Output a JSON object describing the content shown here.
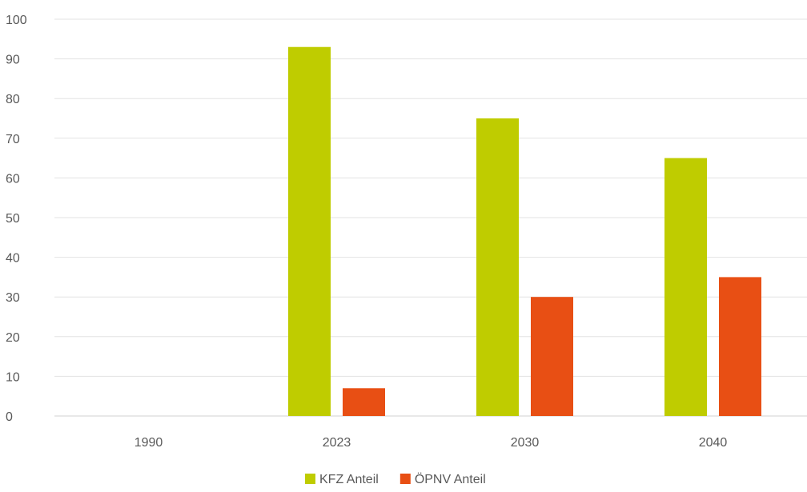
{
  "chart_data": {
    "type": "bar",
    "categories": [
      "1990",
      "2023",
      "2030",
      "2040"
    ],
    "series": [
      {
        "name": "KFZ Anteil",
        "color": "#bfcc00",
        "values": [
          0,
          93,
          75,
          65
        ]
      },
      {
        "name": "ÖPNV Anteil",
        "color": "#e84f14",
        "values": [
          0,
          7,
          30,
          35
        ]
      }
    ],
    "ylim": [
      0,
      100
    ],
    "yticks": [
      "0",
      "10",
      "20",
      "30",
      "40",
      "50",
      "60",
      "70",
      "80",
      "90",
      "100"
    ],
    "grid": true,
    "legend_position": "bottom",
    "title": "",
    "xlabel": "",
    "ylabel": ""
  }
}
